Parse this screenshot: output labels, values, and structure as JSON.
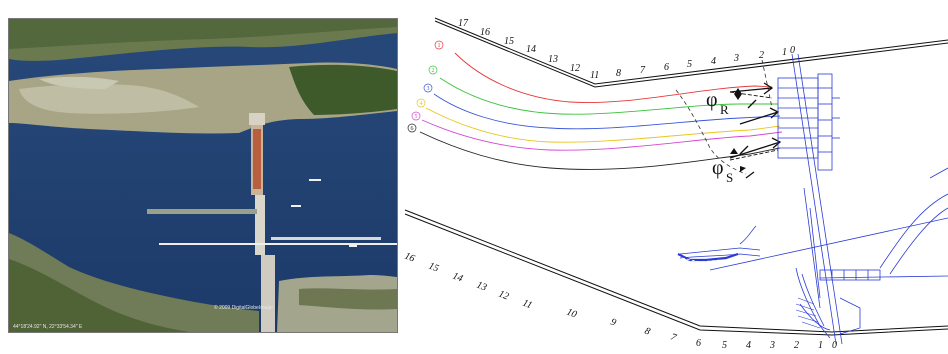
{
  "photo": {
    "copyright": "© 2009 DigitalGlobe",
    "image_credit": "Image",
    "coordinates": "44°18'24.92\" N, 22°33'54.34\" E"
  },
  "diagram": {
    "top_bank_labels": [
      "17",
      "16",
      "15",
      "14",
      "13",
      "12",
      "11",
      "8",
      "7",
      "6",
      "5",
      "4",
      "3",
      "2",
      "1",
      "0"
    ],
    "bottom_bank_labels": [
      "16",
      "15",
      "14",
      "13",
      "12",
      "11",
      "10",
      "9",
      "8",
      "7",
      "6",
      "5",
      "4",
      "3",
      "2",
      "1",
      "0"
    ],
    "streamline_labels": [
      {
        "label": "1",
        "color": "#e8393a"
      },
      {
        "label": "2",
        "color": "#39c23a"
      },
      {
        "label": "3",
        "color": "#3a57d9"
      },
      {
        "label": "4",
        "color": "#e8c61d"
      },
      {
        "label": "5",
        "color": "#d447d4"
      },
      {
        "label": "6",
        "color": "#222222"
      }
    ],
    "angle_symbol": "φ",
    "angle_R": "R",
    "angle_S": "S"
  }
}
